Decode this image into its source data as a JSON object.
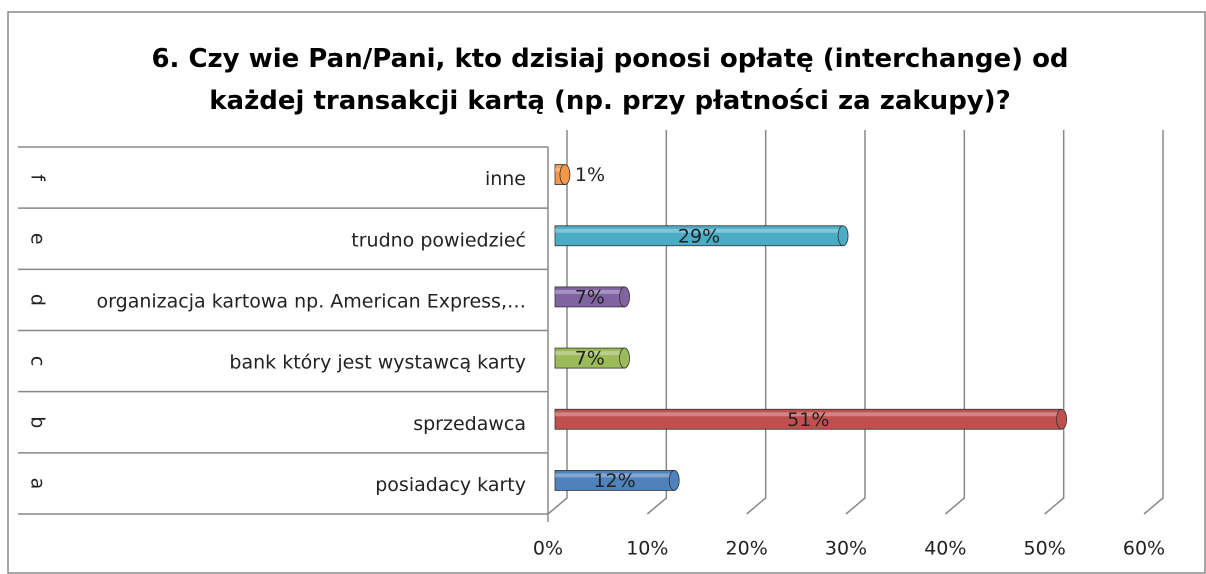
{
  "chart_data": {
    "type": "bar",
    "title": "6. Czy wie Pan/Pani, kto dzisiaj ponosi opłatę (interchange) od każdej transakcji kartą (np. przy płatności za zakupy)?",
    "category_letters": [
      "a",
      "b",
      "c",
      "d",
      "e",
      "f"
    ],
    "categories": [
      "posiadacy karty",
      "sprzedawca",
      "bank który jest wystawcą karty",
      "organizacja kartowa np. American Express,…",
      "trudno powiedzieć",
      "inne"
    ],
    "values": [
      12,
      51,
      7,
      7,
      29,
      1
    ],
    "value_labels": [
      "12%",
      "51%",
      "7%",
      "7%",
      "29%",
      "1%"
    ],
    "colors": [
      "#4f81bd",
      "#c0504d",
      "#9bbb59",
      "#8064a2",
      "#4bacc6",
      "#f79646"
    ],
    "xlim": [
      0,
      60
    ],
    "xticks": [
      {
        "value": 0,
        "label": "0%"
      },
      {
        "value": 10,
        "label": "10%"
      },
      {
        "value": 20,
        "label": "20%"
      },
      {
        "value": 30,
        "label": "30%"
      },
      {
        "value": 40,
        "label": "40%"
      },
      {
        "value": 50,
        "label": "50%"
      },
      {
        "value": 60,
        "label": "60%"
      }
    ],
    "grid": true
  }
}
